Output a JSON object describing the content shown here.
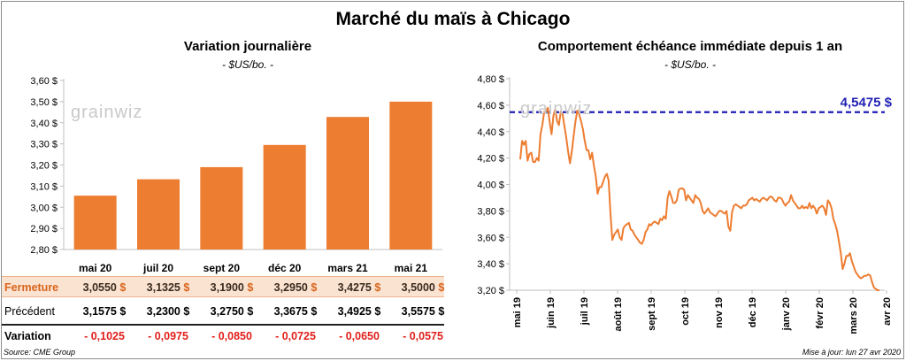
{
  "title": "Marché du maïs à Chicago",
  "chart_data": [
    {
      "type": "bar",
      "title": "Variation journalière",
      "subtitle": "- $US/bo. -",
      "categories": [
        "mai 20",
        "juil 20",
        "sept 20",
        "déc 20",
        "mars 21",
        "mai 21"
      ],
      "values": [
        3.055,
        3.1325,
        3.19,
        3.295,
        3.4275,
        3.5
      ],
      "ylim": [
        2.8,
        3.6
      ],
      "yticks": [
        "3,60 $",
        "3,50 $",
        "3,40 $",
        "3,30 $",
        "3,20 $",
        "3,10 $",
        "3,00 $",
        "2,90 $",
        "2,80 $"
      ],
      "bar_color": "#ed7d31",
      "grid": false
    },
    {
      "type": "line",
      "title": "Comportement échéance immédiate depuis 1 an",
      "subtitle": "- $US/bo. -",
      "x_labels": [
        "mai 19",
        "juin 19",
        "juil 19",
        "août 19",
        "sept 19",
        "oct 19",
        "nov 19",
        "déc 19",
        "janv 20",
        "févr 20",
        "mars 20",
        "avr 20"
      ],
      "ylim": [
        3.2,
        4.8
      ],
      "yticks": [
        "4,80 $",
        "4,60 $",
        "4,40 $",
        "4,20 $",
        "4,00 $",
        "3,80 $",
        "3,60 $",
        "3,40 $",
        "3,20 $"
      ],
      "line_color": "#ed7d31",
      "reference_line": {
        "value": 4.5475,
        "label": "4,5475 $",
        "color": "#1f1fb4"
      },
      "series": [
        {
          "values": [
            4.19,
            4.33,
            4.3,
            4.33,
            4.18,
            4.23,
            4.24,
            4.17,
            4.17,
            4.2,
            4.18,
            4.38,
            4.45,
            4.55,
            4.55,
            4.58,
            4.47,
            4.38,
            4.52,
            4.57,
            4.48,
            4.45,
            4.55,
            4.53,
            4.44,
            4.35,
            4.25,
            4.16,
            4.25,
            4.37,
            4.48,
            4.56,
            4.53,
            4.48,
            4.42,
            4.33,
            4.26,
            4.26,
            4.19,
            4.24,
            4.14,
            4.06,
            3.93,
            3.98,
            3.98,
            4.02,
            4.06,
            4.08,
            4.03,
            3.78,
            3.58,
            3.62,
            3.64,
            3.66,
            3.6,
            3.58,
            3.67,
            3.69,
            3.7,
            3.71,
            3.66,
            3.65,
            3.62,
            3.6,
            3.58,
            3.56,
            3.55,
            3.58,
            3.64,
            3.66,
            3.7,
            3.69,
            3.71,
            3.72,
            3.71,
            3.7,
            3.74,
            3.73,
            3.76,
            3.74,
            3.9,
            3.95,
            3.91,
            3.86,
            3.86,
            3.88,
            3.96,
            3.97,
            3.97,
            3.96,
            3.88,
            3.92,
            3.9,
            3.88,
            3.86,
            3.92,
            3.9,
            3.89,
            3.86,
            3.8,
            3.78,
            3.8,
            3.82,
            3.79,
            3.78,
            3.77,
            3.76,
            3.78,
            3.8,
            3.8,
            3.79,
            3.78,
            3.8,
            3.68,
            3.65,
            3.79,
            3.84,
            3.85,
            3.84,
            3.83,
            3.82,
            3.84,
            3.84,
            3.85,
            3.88,
            3.89,
            3.9,
            3.88,
            3.89,
            3.88,
            3.87,
            3.89,
            3.9,
            3.89,
            3.88,
            3.9,
            3.91,
            3.9,
            3.88,
            3.87,
            3.9,
            3.9,
            3.89,
            3.86,
            3.84,
            3.86,
            3.87,
            3.92,
            3.88,
            3.86,
            3.84,
            3.82,
            3.82,
            3.84,
            3.82,
            3.83,
            3.82,
            3.86,
            3.82,
            3.84,
            3.82,
            3.78,
            3.82,
            3.83,
            3.84,
            3.82,
            3.77,
            3.88,
            3.86,
            3.82,
            3.74,
            3.7,
            3.65,
            3.57,
            3.48,
            3.36,
            3.4,
            3.46,
            3.46,
            3.48,
            3.42,
            3.38,
            3.34,
            3.32,
            3.3,
            3.29,
            3.3,
            3.31,
            3.31,
            3.32,
            3.31,
            3.26,
            3.22,
            3.21,
            3.2,
            3.2
          ]
        }
      ]
    }
  ],
  "table": {
    "rows": [
      {
        "label": "Fermeture",
        "values": [
          "3,0550",
          "3,1325",
          "3,1900",
          "3,2950",
          "3,4275",
          "3,5000"
        ],
        "suffix": "$"
      },
      {
        "label": "Précédent",
        "values": [
          "3,1575",
          "3,2300",
          "3,2750",
          "3,3675",
          "3,4925",
          "3,5575"
        ],
        "suffix": "$"
      },
      {
        "label": "Variation",
        "values": [
          "- 0,1025",
          "- 0,0975",
          "- 0,0850",
          "- 0,0725",
          "- 0,0650",
          "- 0,0575"
        ],
        "suffix": ""
      }
    ]
  },
  "source": "Source: CME Group",
  "update": "Mise à jour: lun 27 avr 2020",
  "watermark": "grainwiz"
}
